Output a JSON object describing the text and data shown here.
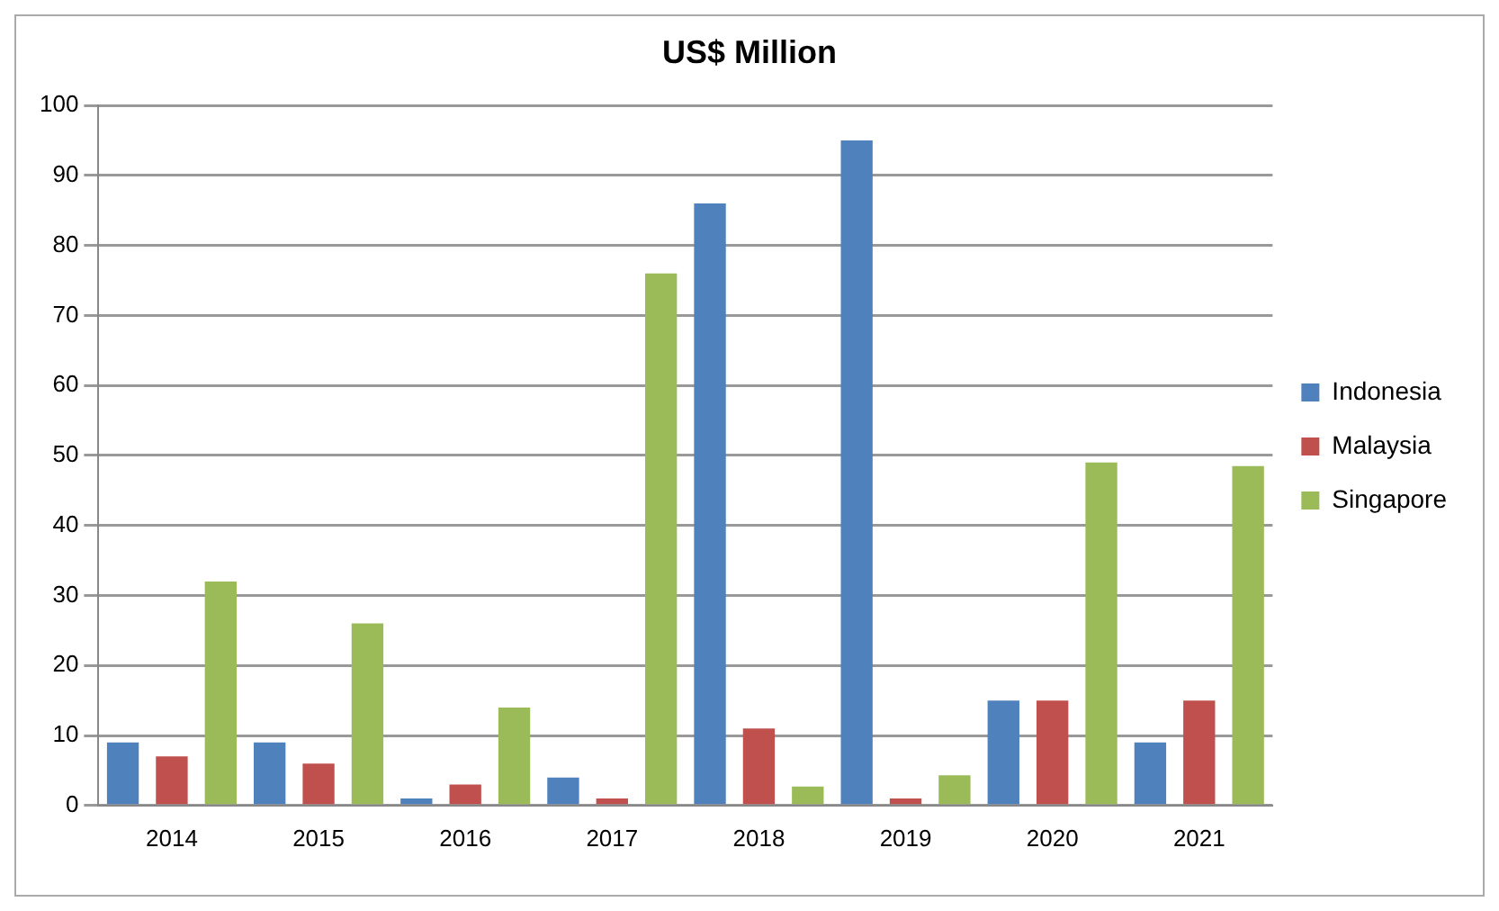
{
  "chart_data": {
    "type": "bar",
    "title": "US$ Million",
    "categories": [
      "2014",
      "2015",
      "2016",
      "2017",
      "2018",
      "2019",
      "2020",
      "2021"
    ],
    "series": [
      {
        "name": "Indonesia",
        "color": "#4f81bd",
        "values": [
          9,
          9,
          1,
          4,
          86,
          95,
          15,
          9
        ]
      },
      {
        "name": "Malaysia",
        "color": "#c0504d",
        "values": [
          7,
          6,
          3,
          1,
          11,
          1,
          15,
          15
        ]
      },
      {
        "name": "Singapore",
        "color": "#9bbb59",
        "values": [
          32,
          26,
          14,
          76,
          2.7,
          4.3,
          49,
          48.5
        ]
      }
    ],
    "ylim": [
      0,
      100
    ],
    "yticks": [
      0,
      10,
      20,
      30,
      40,
      50,
      60,
      70,
      80,
      90,
      100
    ],
    "grid": "y",
    "legend": "right"
  }
}
